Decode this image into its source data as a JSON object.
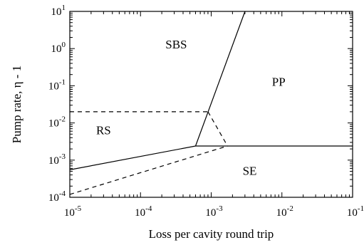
{
  "chart_data": {
    "type": "line",
    "x_scale": "log",
    "y_scale": "log",
    "xlim": [
      1e-05,
      0.1
    ],
    "ylim": [
      0.0001,
      10
    ],
    "xlabel": "Loss per cavity round trip",
    "ylabel": "Pump rate, η - 1",
    "x_ticks": [
      {
        "value": 1e-05,
        "base": "10",
        "exp": "-5"
      },
      {
        "value": 0.0001,
        "base": "10",
        "exp": "-4"
      },
      {
        "value": 0.001,
        "base": "10",
        "exp": "-3"
      },
      {
        "value": 0.01,
        "base": "10",
        "exp": "-2"
      },
      {
        "value": 0.1,
        "base": "10",
        "exp": "-1"
      }
    ],
    "y_ticks": [
      {
        "value": 0.0001,
        "base": "10",
        "exp": "-4"
      },
      {
        "value": 0.001,
        "base": "10",
        "exp": "-3"
      },
      {
        "value": 0.01,
        "base": "10",
        "exp": "-2"
      },
      {
        "value": 0.1,
        "base": "10",
        "exp": "-1"
      },
      {
        "value": 1,
        "base": "10",
        "exp": "0"
      },
      {
        "value": 10,
        "base": "10",
        "exp": "1"
      }
    ],
    "grid": false,
    "regions": [
      {
        "label": "SBS",
        "x": 0.00032,
        "y": 1.0
      },
      {
        "label": "PP",
        "x": 0.009,
        "y": 0.1
      },
      {
        "label": "RS",
        "x": 3e-05,
        "y": 0.005
      },
      {
        "label": "SE",
        "x": 0.0035,
        "y": 0.0004
      }
    ],
    "boundaries": [
      {
        "style": "solid",
        "points": [
          [
            1e-05,
            0.00055
          ],
          [
            0.0006,
            0.0024
          ]
        ]
      },
      {
        "style": "solid",
        "points": [
          [
            0.0006,
            0.0024
          ],
          [
            0.003,
            10
          ]
        ]
      },
      {
        "style": "solid",
        "points": [
          [
            0.0006,
            0.0024
          ],
          [
            0.1,
            0.0024
          ]
        ]
      },
      {
        "style": "dashed",
        "points": [
          [
            1e-05,
            0.00012
          ],
          [
            0.0017,
            0.0024
          ]
        ]
      },
      {
        "style": "dashed",
        "points": [
          [
            1e-05,
            0.02
          ],
          [
            0.0009,
            0.02
          ]
        ]
      },
      {
        "style": "dashed",
        "points": [
          [
            0.0009,
            0.02
          ],
          [
            0.0017,
            0.0024
          ]
        ]
      }
    ]
  }
}
